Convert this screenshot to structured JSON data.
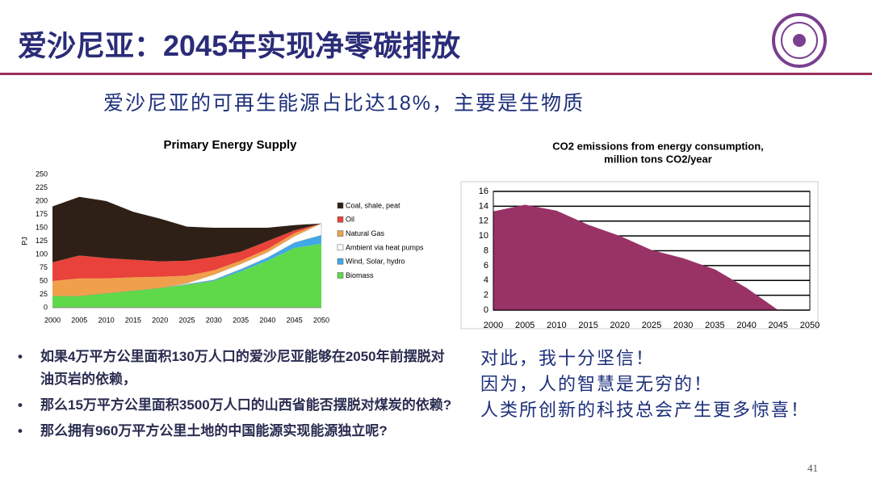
{
  "slide": {
    "title": "爱沙尼亚：2045年实现净零碳排放",
    "subtitle": "爱沙尼亚的可再生能源占比达18%，主要是生物质",
    "bullets": [
      "如果4万平方公里面积130万人口的爱沙尼亚能够在2050年前摆脱对油页岩的依赖，",
      "那么15万平方公里面积3500万人口的山西省能否摆脱对煤炭的依赖?",
      "那么拥有960万平方公里土地的中国能源实现能源独立呢?"
    ],
    "statements": [
      "对此，我十分坚信！",
      "因为，人的智慧是无穷的！",
      "人类所创新的科技总会产生更多惊喜！"
    ],
    "page_number": "41"
  },
  "chart_data": [
    {
      "type": "stacked-area",
      "title": "Primary Energy Supply",
      "y_label": "PJ",
      "x": [
        2000,
        2005,
        2010,
        2015,
        2020,
        2025,
        2030,
        2035,
        2040,
        2045,
        2050
      ],
      "xlim": [
        2000,
        2050
      ],
      "xticks": [
        2000,
        2005,
        2010,
        2015,
        2020,
        2025,
        2030,
        2035,
        2040,
        2045,
        2050
      ],
      "ylim": [
        0,
        250
      ],
      "yticks": [
        0,
        25,
        50,
        75,
        100,
        125,
        150,
        175,
        200,
        225,
        250
      ],
      "legend": "right",
      "series": [
        {
          "name": "Biomass",
          "color": "#5fd94a",
          "values": [
            22,
            22,
            27,
            32,
            37,
            43,
            50,
            68,
            88,
            112,
            120
          ]
        },
        {
          "name": "Wind, Solar, hydro",
          "color": "#3fa9e8",
          "values": [
            0,
            0,
            0,
            0,
            0,
            1,
            2,
            4,
            6,
            10,
            16
          ]
        },
        {
          "name": "Ambient via heat pumps",
          "color": "#ffffff",
          "values": [
            0,
            0,
            0,
            0,
            0,
            2,
            10,
            10,
            10,
            12,
            22
          ]
        },
        {
          "name": "Natural Gas",
          "color": "#f0a04a",
          "values": [
            28,
            33,
            28,
            25,
            21,
            14,
            8,
            6,
            6,
            6,
            0
          ]
        },
        {
          "name": "Oil",
          "color": "#e8423a",
          "values": [
            35,
            43,
            38,
            33,
            29,
            28,
            25,
            17,
            15,
            5,
            0
          ]
        },
        {
          "name": "Coal, shale, peat",
          "color": "#2e2016",
          "values": [
            105,
            110,
            107,
            90,
            80,
            64,
            55,
            45,
            25,
            10,
            0
          ]
        }
      ]
    },
    {
      "type": "area",
      "title": [
        "CO2 emissions from energy consumption,",
        "million tons CO2/year"
      ],
      "x": [
        2000,
        2005,
        2010,
        2015,
        2020,
        2025,
        2030,
        2035,
        2040,
        2045,
        2050
      ],
      "xlim": [
        2000,
        2050
      ],
      "xticks": [
        2000,
        2005,
        2010,
        2015,
        2020,
        2025,
        2030,
        2035,
        2040,
        2045,
        2050
      ],
      "ylim": [
        0,
        16
      ],
      "yticks": [
        0,
        2,
        4,
        6,
        8,
        10,
        12,
        14,
        16
      ],
      "grid": true,
      "color": "#993366",
      "values": [
        13.3,
        14.2,
        13.4,
        11.5,
        10,
        8.1,
        7,
        5.5,
        3,
        0,
        0
      ]
    }
  ]
}
